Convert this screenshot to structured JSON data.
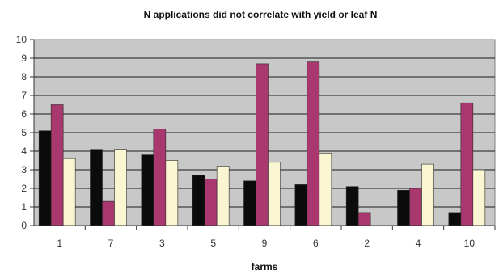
{
  "chart_data": {
    "type": "bar",
    "title": "N applications did not correlate with yield or leaf N",
    "xlabel": "farms",
    "ylabel": "",
    "ylim": [
      0,
      10
    ],
    "y_ticks": [
      "0",
      "1",
      "2",
      "3",
      "4",
      "5",
      "6",
      "7",
      "8",
      "9",
      "10"
    ],
    "categories": [
      "1",
      "7",
      "3",
      "5",
      "9",
      "6",
      "2",
      "4",
      "10"
    ],
    "series": [
      {
        "color": "#0b0b0b",
        "values": [
          5.1,
          4.1,
          3.8,
          2.7,
          2.4,
          2.2,
          2.1,
          1.9,
          0.7
        ]
      },
      {
        "color": "#a8386e",
        "values": [
          6.5,
          1.3,
          5.2,
          2.5,
          8.7,
          8.8,
          0.7,
          2.0,
          6.6
        ]
      },
      {
        "color": "#fbf6d2",
        "values": [
          3.6,
          4.1,
          3.5,
          3.2,
          3.4,
          3.9,
          0,
          3.3,
          3.0
        ]
      }
    ],
    "grid": true,
    "plot_background": "#c8c8c8",
    "legend": "none"
  }
}
